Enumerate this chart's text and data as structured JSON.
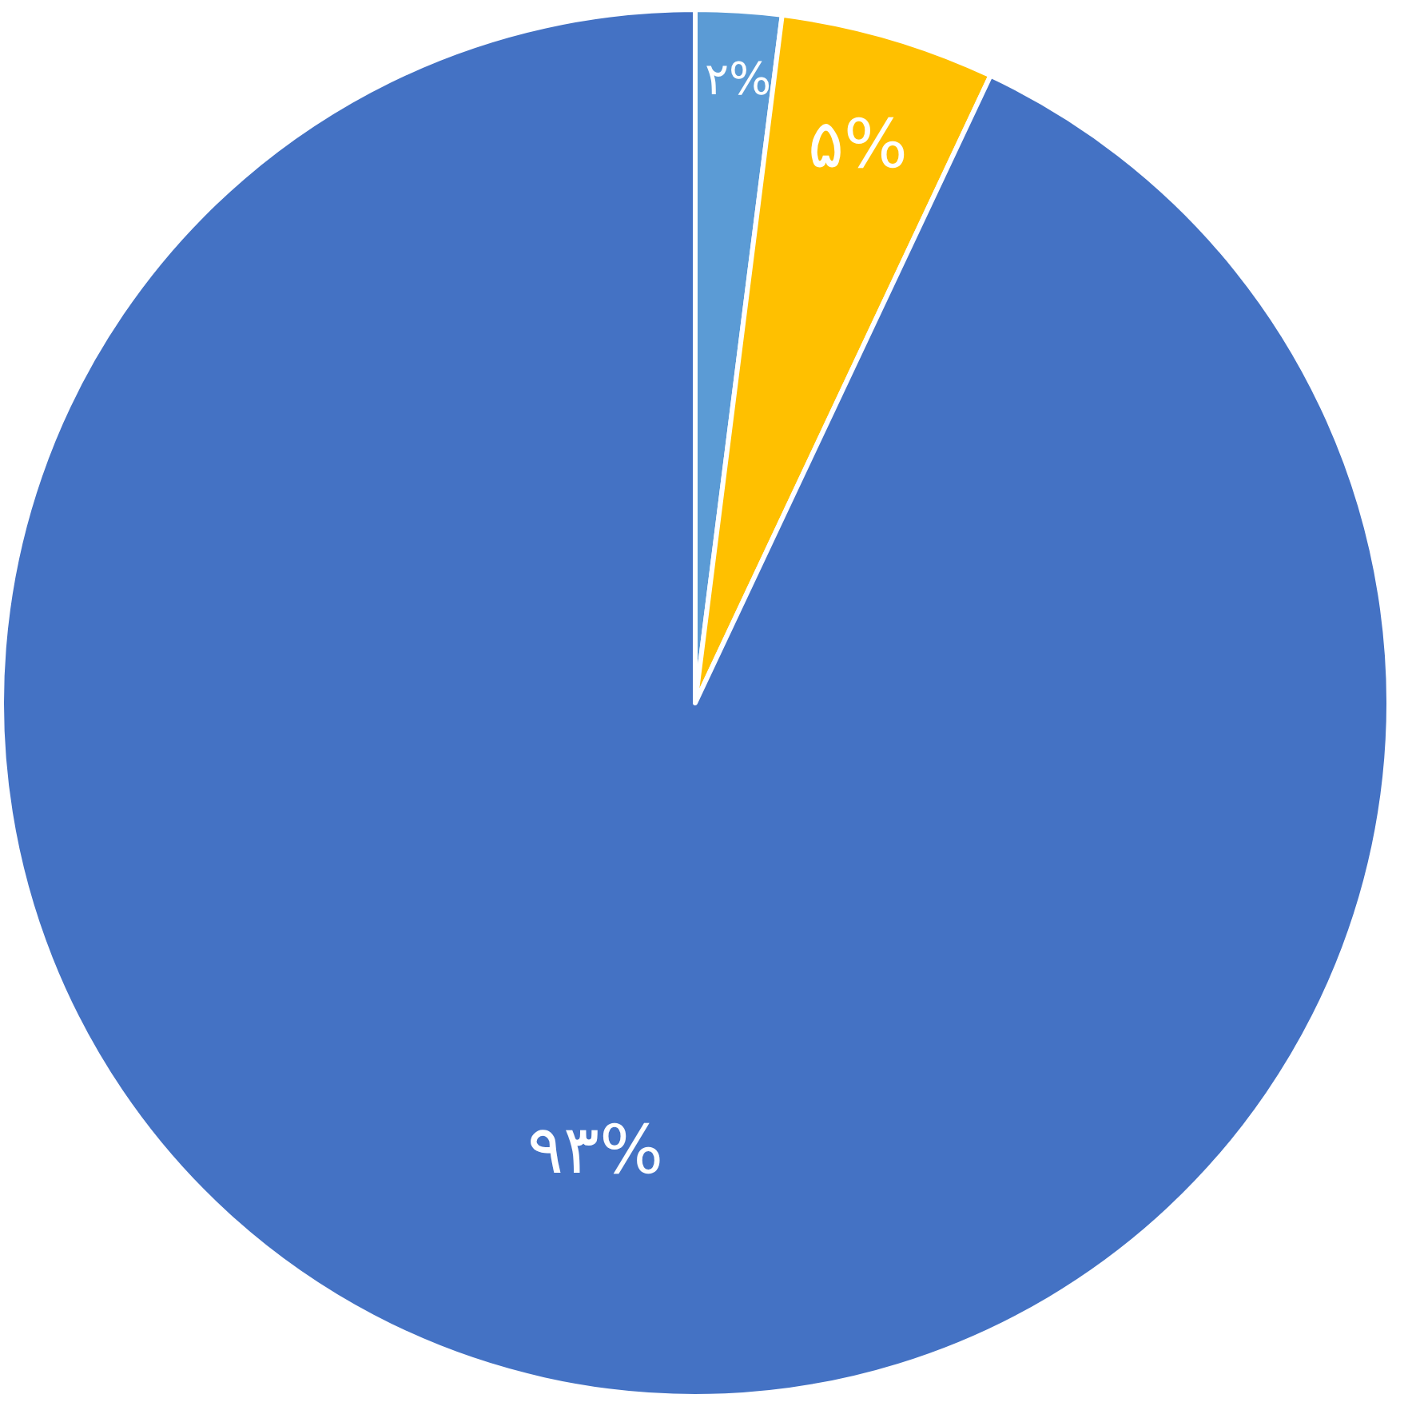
{
  "chart_data": {
    "type": "pie",
    "categories": [
      null,
      null,
      null
    ],
    "values": [
      2,
      5,
      93
    ],
    "colors": [
      "#5b9bd5",
      "#ffc000",
      "#4472c4"
    ],
    "value_labels": [
      "۲%",
      "۵%",
      "۹۳%"
    ]
  }
}
